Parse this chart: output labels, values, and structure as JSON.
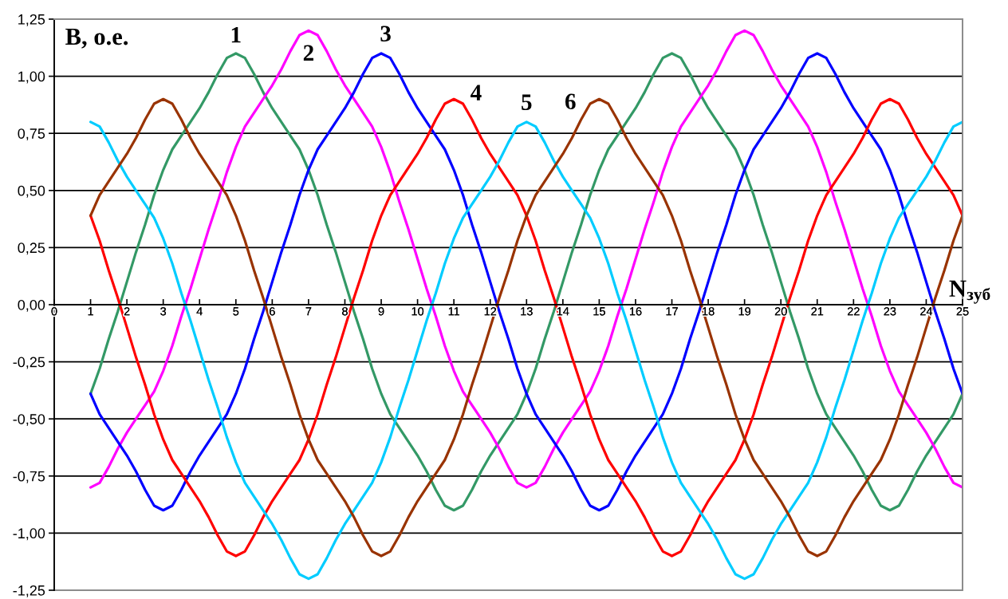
{
  "chart_data": {
    "type": "line",
    "ylabel": "В, о.е.",
    "xlabel": "N$_{зуб}$",
    "x": [
      1,
      1.25,
      1.5,
      1.75,
      2,
      2.25,
      2.5,
      2.75,
      3,
      3.25,
      3.5,
      3.75,
      4,
      4.25,
      4.5,
      4.75,
      5,
      5.25,
      5.5,
      5.75,
      6,
      6.25,
      6.5,
      6.75,
      7,
      7.25,
      7.5,
      7.75,
      8,
      8.25,
      8.5,
      8.75,
      9,
      9.25,
      9.5,
      9.75,
      10,
      10.25,
      10.5,
      10.75,
      11,
      11.25,
      11.5,
      11.75,
      12,
      12.25,
      12.5,
      12.75,
      13,
      13.25,
      13.5,
      13.75,
      14,
      14.25,
      14.5,
      14.75,
      15,
      15.25,
      15.5,
      15.75,
      16,
      16.25,
      16.5,
      16.75,
      17,
      17.25,
      17.5,
      17.75,
      18,
      18.25,
      18.5,
      18.75,
      19,
      19.25,
      19.5,
      19.75,
      20,
      20.25,
      20.5,
      20.75,
      21,
      21.25,
      21.5,
      21.75,
      22,
      22.25,
      22.5,
      22.75,
      23,
      23.25,
      23.5,
      23.75,
      24,
      24.25,
      24.5,
      24.75,
      25
    ],
    "xlim": [
      0,
      25
    ],
    "xticks": [
      0,
      1,
      2,
      3,
      4,
      5,
      6,
      7,
      8,
      9,
      10,
      11,
      12,
      13,
      14,
      15,
      16,
      17,
      18,
      19,
      20,
      21,
      22,
      23,
      24,
      25
    ],
    "ylim": [
      -1.25,
      1.25
    ],
    "yticks": [
      {
        "value": -1.25,
        "label": "-1,25"
      },
      {
        "value": -1.0,
        "label": "-1,00"
      },
      {
        "value": -0.75,
        "label": "-0,75"
      },
      {
        "value": -0.5,
        "label": "-0,50"
      },
      {
        "value": -0.25,
        "label": "-0,25"
      },
      {
        "value": 0,
        "label": "0,00"
      },
      {
        "value": 0.25,
        "label": "0,25"
      },
      {
        "value": 0.5,
        "label": "0,50"
      },
      {
        "value": 0.75,
        "label": "0,75"
      },
      {
        "value": 1.0,
        "label": "1,00"
      },
      {
        "value": 1.25,
        "label": "1,25"
      }
    ],
    "grid": "y",
    "series": [
      {
        "name": "1",
        "color": "#339966",
        "values": [
          -0.39,
          -0.28,
          -0.15,
          -0.03,
          0.1,
          0.23,
          0.35,
          0.48,
          0.59,
          0.68,
          0.74,
          0.8,
          0.86,
          0.93,
          1.01,
          1.08,
          1.1,
          1.08,
          1.01,
          0.93,
          0.86,
          0.8,
          0.74,
          0.68,
          0.59,
          0.48,
          0.35,
          0.23,
          0.1,
          -0.03,
          -0.15,
          -0.28,
          -0.39,
          -0.48,
          -0.54,
          -0.6,
          -0.66,
          -0.73,
          -0.81,
          -0.88,
          -0.9,
          -0.88,
          -0.81,
          -0.73,
          -0.66,
          -0.6,
          -0.54,
          -0.48,
          -0.39,
          -0.28,
          -0.15,
          -0.03,
          0.1,
          0.23,
          0.35,
          0.48,
          0.59,
          0.68,
          0.74,
          0.8,
          0.86,
          0.93,
          1.01,
          1.08,
          1.1,
          1.08,
          1.01,
          0.93,
          0.86,
          0.8,
          0.74,
          0.68,
          0.59,
          0.48,
          0.35,
          0.23,
          0.1,
          -0.03,
          -0.15,
          -0.28,
          -0.39,
          -0.48,
          -0.54,
          -0.6,
          -0.66,
          -0.73,
          -0.81,
          -0.88,
          -0.9,
          -0.88,
          -0.81,
          -0.73,
          -0.66,
          -0.6,
          -0.54,
          -0.48,
          -0.39
        ]
      },
      {
        "name": "2",
        "color": "#ff00ff",
        "values": [
          -0.8,
          -0.78,
          -0.71,
          -0.63,
          -0.56,
          -0.5,
          -0.44,
          -0.38,
          -0.29,
          -0.18,
          -0.05,
          0.07,
          0.2,
          0.33,
          0.45,
          0.58,
          0.69,
          0.78,
          0.84,
          0.9,
          0.96,
          1.03,
          1.11,
          1.18,
          1.2,
          1.18,
          1.11,
          1.03,
          0.96,
          0.9,
          0.84,
          0.78,
          0.69,
          0.58,
          0.45,
          0.33,
          0.2,
          0.07,
          -0.05,
          -0.18,
          -0.29,
          -0.38,
          -0.44,
          -0.5,
          -0.56,
          -0.63,
          -0.71,
          -0.78,
          -0.8,
          -0.78,
          -0.71,
          -0.63,
          -0.56,
          -0.5,
          -0.44,
          -0.38,
          -0.29,
          -0.18,
          -0.05,
          0.07,
          0.2,
          0.33,
          0.45,
          0.58,
          0.69,
          0.78,
          0.84,
          0.9,
          0.96,
          1.03,
          1.11,
          1.18,
          1.2,
          1.18,
          1.11,
          1.03,
          0.96,
          0.9,
          0.84,
          0.78,
          0.69,
          0.58,
          0.45,
          0.33,
          0.2,
          0.07,
          -0.05,
          -0.18,
          -0.29,
          -0.38,
          -0.44,
          -0.5,
          -0.56,
          -0.63,
          -0.71,
          -0.78,
          -0.8
        ]
      },
      {
        "name": "3",
        "color": "#0000ff",
        "values": [
          -0.39,
          -0.48,
          -0.54,
          -0.6,
          -0.66,
          -0.73,
          -0.81,
          -0.88,
          -0.9,
          -0.88,
          -0.81,
          -0.73,
          -0.66,
          -0.6,
          -0.54,
          -0.48,
          -0.39,
          -0.28,
          -0.15,
          -0.03,
          0.1,
          0.23,
          0.35,
          0.48,
          0.59,
          0.68,
          0.74,
          0.8,
          0.86,
          0.93,
          1.01,
          1.08,
          1.1,
          1.08,
          1.01,
          0.93,
          0.86,
          0.8,
          0.74,
          0.68,
          0.59,
          0.48,
          0.35,
          0.23,
          0.1,
          -0.03,
          -0.15,
          -0.28,
          -0.39,
          -0.48,
          -0.54,
          -0.6,
          -0.66,
          -0.73,
          -0.81,
          -0.88,
          -0.9,
          -0.88,
          -0.81,
          -0.73,
          -0.66,
          -0.6,
          -0.54,
          -0.48,
          -0.39,
          -0.28,
          -0.15,
          -0.03,
          0.1,
          0.23,
          0.35,
          0.48,
          0.59,
          0.68,
          0.74,
          0.8,
          0.86,
          0.93,
          1.01,
          1.08,
          1.1,
          1.08,
          1.01,
          0.93,
          0.86,
          0.8,
          0.74,
          0.68,
          0.59,
          0.48,
          0.35,
          0.23,
          0.1,
          -0.03,
          -0.15,
          -0.28,
          -0.39
        ]
      },
      {
        "name": "4",
        "color": "#ff0000",
        "values": [
          0.39,
          0.28,
          0.15,
          0.03,
          -0.1,
          -0.23,
          -0.35,
          -0.48,
          -0.59,
          -0.68,
          -0.74,
          -0.8,
          -0.86,
          -0.93,
          -1.01,
          -1.08,
          -1.1,
          -1.08,
          -1.01,
          -0.93,
          -0.86,
          -0.8,
          -0.74,
          -0.68,
          -0.59,
          -0.48,
          -0.35,
          -0.23,
          -0.1,
          0.03,
          0.15,
          0.28,
          0.39,
          0.48,
          0.54,
          0.6,
          0.66,
          0.73,
          0.81,
          0.88,
          0.9,
          0.88,
          0.81,
          0.73,
          0.66,
          0.6,
          0.54,
          0.48,
          0.39,
          0.28,
          0.15,
          0.03,
          -0.1,
          -0.23,
          -0.35,
          -0.48,
          -0.59,
          -0.68,
          -0.74,
          -0.8,
          -0.86,
          -0.93,
          -1.01,
          -1.08,
          -1.1,
          -1.08,
          -1.01,
          -0.93,
          -0.86,
          -0.8,
          -0.74,
          -0.68,
          -0.59,
          -0.48,
          -0.35,
          -0.23,
          -0.1,
          0.03,
          0.15,
          0.28,
          0.39,
          0.48,
          0.54,
          0.6,
          0.66,
          0.73,
          0.81,
          0.88,
          0.9,
          0.88,
          0.81,
          0.73,
          0.66,
          0.6,
          0.54,
          0.48,
          0.39
        ]
      },
      {
        "name": "5",
        "color": "#00ccff",
        "values": [
          0.8,
          0.78,
          0.71,
          0.63,
          0.56,
          0.5,
          0.44,
          0.38,
          0.29,
          0.18,
          0.05,
          -0.07,
          -0.2,
          -0.33,
          -0.45,
          -0.58,
          -0.69,
          -0.78,
          -0.84,
          -0.9,
          -0.96,
          -1.03,
          -1.11,
          -1.18,
          -1.2,
          -1.18,
          -1.11,
          -1.03,
          -0.96,
          -0.9,
          -0.84,
          -0.78,
          -0.69,
          -0.58,
          -0.45,
          -0.33,
          -0.2,
          -0.07,
          0.05,
          0.18,
          0.29,
          0.38,
          0.44,
          0.5,
          0.56,
          0.63,
          0.71,
          0.78,
          0.8,
          0.78,
          0.71,
          0.63,
          0.56,
          0.5,
          0.44,
          0.38,
          0.29,
          0.18,
          0.05,
          -0.07,
          -0.2,
          -0.33,
          -0.45,
          -0.58,
          -0.69,
          -0.78,
          -0.84,
          -0.9,
          -0.96,
          -1.03,
          -1.11,
          -1.18,
          -1.2,
          -1.18,
          -1.11,
          -1.03,
          -0.96,
          -0.9,
          -0.84,
          -0.78,
          -0.69,
          -0.58,
          -0.45,
          -0.33,
          -0.2,
          -0.07,
          0.05,
          0.18,
          0.29,
          0.38,
          0.44,
          0.5,
          0.56,
          0.63,
          0.71,
          0.78,
          0.8
        ]
      },
      {
        "name": "6",
        "color": "#993300",
        "values": [
          0.39,
          0.48,
          0.54,
          0.6,
          0.66,
          0.73,
          0.81,
          0.88,
          0.9,
          0.88,
          0.81,
          0.73,
          0.66,
          0.6,
          0.54,
          0.48,
          0.39,
          0.28,
          0.15,
          0.03,
          -0.1,
          -0.23,
          -0.35,
          -0.48,
          -0.59,
          -0.68,
          -0.74,
          -0.8,
          -0.86,
          -0.93,
          -1.01,
          -1.08,
          -1.1,
          -1.08,
          -1.01,
          -0.93,
          -0.86,
          -0.8,
          -0.74,
          -0.68,
          -0.59,
          -0.48,
          -0.35,
          -0.23,
          -0.1,
          0.03,
          0.15,
          0.28,
          0.39,
          0.48,
          0.54,
          0.6,
          0.66,
          0.73,
          0.81,
          0.88,
          0.9,
          0.88,
          0.81,
          0.73,
          0.66,
          0.6,
          0.54,
          0.48,
          0.39,
          0.28,
          0.15,
          0.03,
          -0.1,
          -0.23,
          -0.35,
          -0.48,
          -0.59,
          -0.68,
          -0.74,
          -0.8,
          -0.86,
          -0.93,
          -1.01,
          -1.08,
          -1.1,
          -1.08,
          -1.01,
          -0.93,
          -0.86,
          -0.8,
          -0.74,
          -0.68,
          -0.59,
          -0.48,
          -0.35,
          -0.23,
          -0.1,
          0.03,
          0.15,
          0.28,
          0.39
        ]
      }
    ]
  }
}
